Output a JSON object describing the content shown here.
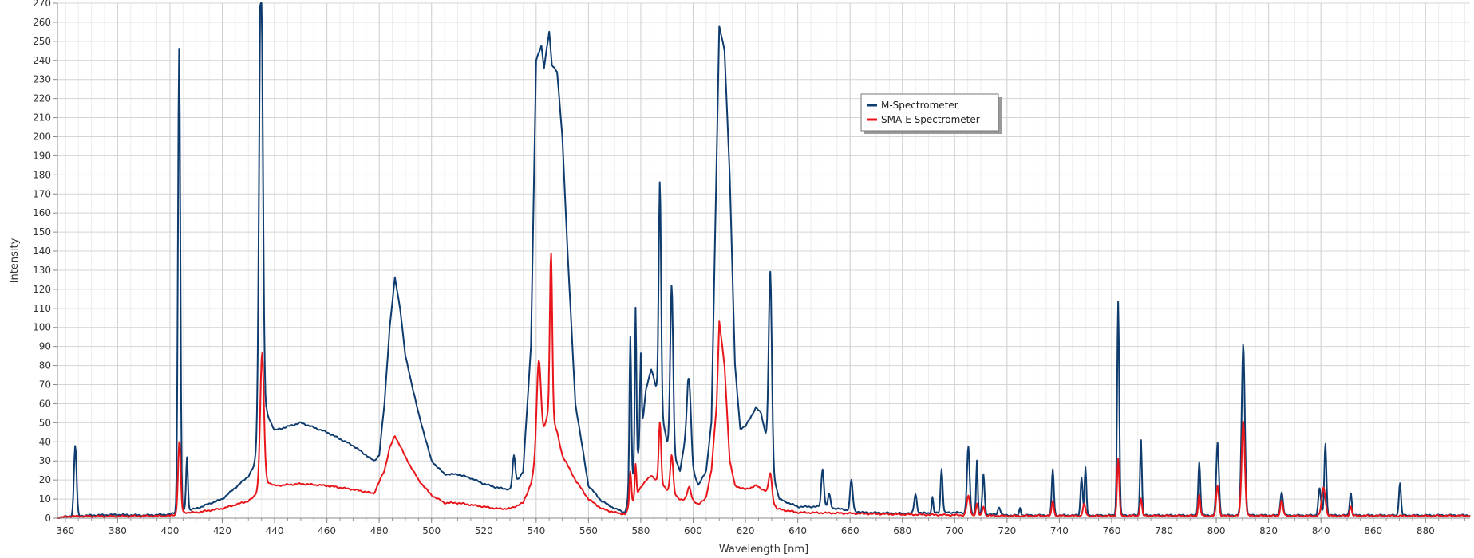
{
  "chart_data": {
    "type": "line",
    "title": "",
    "xlabel": "Wavelength [nm]",
    "ylabel": "Intensity",
    "xlim": [
      357,
      897
    ],
    "ylim": [
      0,
      270
    ],
    "x_ticks": [
      360,
      380,
      400,
      420,
      440,
      460,
      480,
      500,
      520,
      540,
      560,
      580,
      600,
      620,
      640,
      660,
      680,
      700,
      720,
      740,
      760,
      780,
      800,
      820,
      840,
      860,
      880
    ],
    "x_minor_step": 5,
    "y_tick_step": 10,
    "grid": true,
    "legend": {
      "position": "top-right-of-center"
    },
    "series": [
      {
        "name": "M-Spectrometer",
        "color": "#0f3c6e",
        "baseline": [
          [
            357,
            0.3
          ],
          [
            362,
            1
          ],
          [
            370,
            1.5
          ],
          [
            380,
            1.8
          ],
          [
            390,
            1.5
          ],
          [
            400,
            2
          ],
          [
            405,
            4
          ],
          [
            410,
            5
          ],
          [
            420,
            10
          ],
          [
            430,
            22
          ],
          [
            432,
            27
          ],
          [
            437,
            55
          ],
          [
            440,
            46
          ],
          [
            450,
            50
          ],
          [
            460,
            45
          ],
          [
            470,
            38
          ],
          [
            478,
            30
          ],
          [
            480,
            33
          ],
          [
            482,
            60
          ],
          [
            484,
            100
          ],
          [
            486,
            126
          ],
          [
            488,
            110
          ],
          [
            490,
            85
          ],
          [
            495,
            55
          ],
          [
            500,
            30
          ],
          [
            505,
            23
          ],
          [
            510,
            23
          ],
          [
            515,
            21
          ],
          [
            520,
            18
          ],
          [
            525,
            16
          ],
          [
            530,
            15
          ],
          [
            535,
            24
          ],
          [
            538,
            90
          ],
          [
            540,
            240
          ],
          [
            542,
            248
          ],
          [
            543,
            236
          ],
          [
            545,
            255
          ],
          [
            546,
            238
          ],
          [
            548,
            234
          ],
          [
            550,
            200
          ],
          [
            552,
            140
          ],
          [
            555,
            60
          ],
          [
            560,
            17
          ],
          [
            565,
            9
          ],
          [
            570,
            5
          ],
          [
            574,
            3
          ],
          [
            580,
            40
          ],
          [
            582,
            68
          ],
          [
            584,
            78
          ],
          [
            586,
            68
          ],
          [
            590,
            40
          ],
          [
            595,
            25
          ],
          [
            598,
            50
          ],
          [
            600,
            25
          ],
          [
            602,
            17
          ],
          [
            605,
            25
          ],
          [
            607,
            50
          ],
          [
            608,
            120
          ],
          [
            610,
            258
          ],
          [
            612,
            245
          ],
          [
            614,
            180
          ],
          [
            616,
            80
          ],
          [
            618,
            47
          ],
          [
            620,
            48
          ],
          [
            622,
            53
          ],
          [
            624,
            58
          ],
          [
            626,
            55
          ],
          [
            628,
            42
          ],
          [
            630,
            25
          ],
          [
            633,
            10
          ],
          [
            640,
            6
          ],
          [
            648,
            6
          ],
          [
            655,
            5
          ],
          [
            665,
            3
          ],
          [
            680,
            2.5
          ],
          [
            700,
            3
          ],
          [
            720,
            1.5
          ],
          [
            750,
            1.5
          ],
          [
            800,
            1.5
          ],
          [
            850,
            1.5
          ],
          [
            897,
            1.5
          ]
        ],
        "peaks": [
          [
            363.8,
            37,
            0.5
          ],
          [
            403.5,
            243,
            0.45
          ],
          [
            406.5,
            28,
            0.35
          ],
          [
            434.8,
            250,
            0.7
          ],
          [
            531.5,
            15,
            0.5
          ],
          [
            576,
            80,
            0.35
          ],
          [
            578,
            83,
            0.3
          ],
          [
            580,
            46,
            0.3
          ],
          [
            587.3,
            118,
            0.45
          ],
          [
            591.8,
            88,
            0.55
          ],
          [
            598.5,
            28,
            0.7
          ],
          [
            629.5,
            100,
            0.6
          ],
          [
            649.5,
            20,
            0.5
          ],
          [
            652,
            7,
            0.5
          ],
          [
            660.5,
            16,
            0.5
          ],
          [
            685,
            10,
            0.5
          ],
          [
            691.5,
            8,
            0.3
          ],
          [
            695,
            23,
            0.4
          ],
          [
            705.2,
            35,
            0.5
          ],
          [
            708.5,
            28,
            0.3
          ],
          [
            711,
            21,
            0.4
          ],
          [
            717,
            4,
            0.5
          ],
          [
            725,
            4,
            0.3
          ],
          [
            737.5,
            24,
            0.4
          ],
          [
            748.5,
            20,
            0.4
          ],
          [
            750,
            25,
            0.35
          ],
          [
            762.5,
            112,
            0.4
          ],
          [
            771.2,
            40,
            0.35
          ],
          [
            793.5,
            28,
            0.4
          ],
          [
            800.5,
            38,
            0.5
          ],
          [
            810.3,
            90,
            0.6
          ],
          [
            825,
            12,
            0.5
          ],
          [
            839.5,
            14,
            0.5
          ],
          [
            841.7,
            38,
            0.4
          ],
          [
            851.4,
            12,
            0.4
          ],
          [
            870.2,
            17,
            0.4
          ]
        ]
      },
      {
        "name": "SMA-E Spectrometer",
        "color": "#e8161b",
        "baseline": [
          [
            357,
            0.3
          ],
          [
            362,
            1
          ],
          [
            380,
            1
          ],
          [
            400,
            1.2
          ],
          [
            405,
            3
          ],
          [
            410,
            3
          ],
          [
            420,
            5
          ],
          [
            430,
            9
          ],
          [
            432,
            11
          ],
          [
            436,
            20
          ],
          [
            440,
            17
          ],
          [
            450,
            18
          ],
          [
            460,
            17
          ],
          [
            470,
            15
          ],
          [
            478,
            13
          ],
          [
            482,
            25
          ],
          [
            484,
            37
          ],
          [
            486,
            43
          ],
          [
            488,
            38
          ],
          [
            490,
            32
          ],
          [
            495,
            20
          ],
          [
            500,
            12
          ],
          [
            505,
            8
          ],
          [
            510,
            8
          ],
          [
            515,
            7
          ],
          [
            520,
            6
          ],
          [
            525,
            5
          ],
          [
            530,
            5
          ],
          [
            535,
            8
          ],
          [
            538,
            18
          ],
          [
            540,
            30
          ],
          [
            542,
            40
          ],
          [
            545,
            58
          ],
          [
            548,
            45
          ],
          [
            550,
            33
          ],
          [
            555,
            20
          ],
          [
            560,
            10
          ],
          [
            565,
            5
          ],
          [
            570,
            3
          ],
          [
            574,
            2
          ],
          [
            580,
            16
          ],
          [
            582,
            20
          ],
          [
            584,
            22
          ],
          [
            586,
            20
          ],
          [
            590,
            15
          ],
          [
            595,
            10
          ],
          [
            600,
            9
          ],
          [
            602,
            7
          ],
          [
            605,
            11
          ],
          [
            607,
            25
          ],
          [
            609,
            60
          ],
          [
            610,
            103
          ],
          [
            612,
            80
          ],
          [
            614,
            30
          ],
          [
            616,
            17
          ],
          [
            620,
            15
          ],
          [
            624,
            17
          ],
          [
            628,
            14
          ],
          [
            632,
            5
          ],
          [
            640,
            3
          ],
          [
            660,
            2.5
          ],
          [
            680,
            2
          ],
          [
            720,
            1.2
          ],
          [
            760,
            1.2
          ],
          [
            800,
            1.2
          ],
          [
            850,
            1.2
          ],
          [
            897,
            1.2
          ]
        ],
        "peaks": [
          [
            403.6,
            38,
            0.5
          ],
          [
            435.2,
            68,
            0.7
          ],
          [
            541,
            48,
            0.8
          ],
          [
            545.7,
            85,
            0.45
          ],
          [
            576,
            18,
            0.35
          ],
          [
            578,
            17,
            0.3
          ],
          [
            587.3,
            32,
            0.45
          ],
          [
            591.8,
            20,
            0.55
          ],
          [
            598.5,
            7,
            0.7
          ],
          [
            629.5,
            13,
            0.6
          ],
          [
            705.2,
            10,
            0.6
          ],
          [
            708.5,
            6,
            0.4
          ],
          [
            711,
            5,
            0.4
          ],
          [
            737.5,
            8,
            0.4
          ],
          [
            749.5,
            6,
            0.5
          ],
          [
            762.5,
            30,
            0.4
          ],
          [
            771.2,
            9,
            0.4
          ],
          [
            793.5,
            11,
            0.4
          ],
          [
            800.5,
            16,
            0.5
          ],
          [
            810.3,
            50,
            0.6
          ],
          [
            825,
            8,
            0.5
          ],
          [
            841,
            15,
            0.7
          ],
          [
            851.4,
            5,
            0.4
          ]
        ]
      }
    ]
  }
}
